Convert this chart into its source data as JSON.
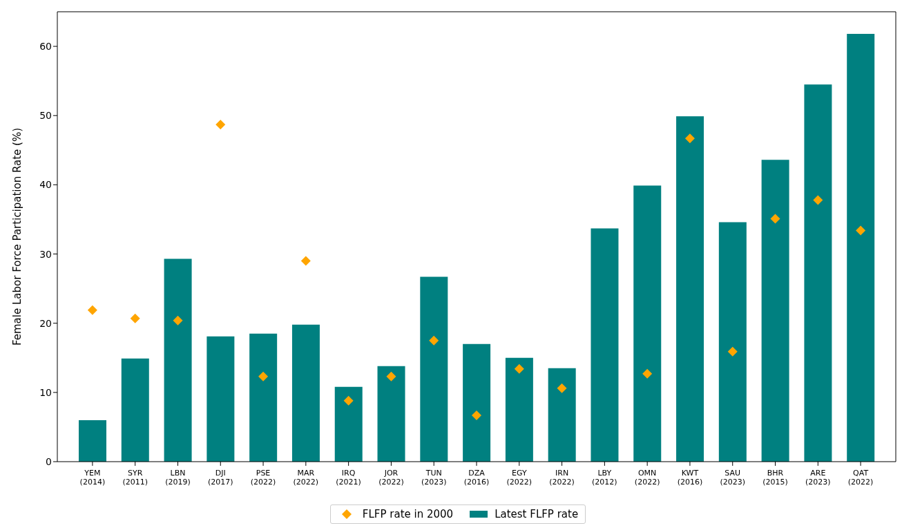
{
  "chart_data": {
    "type": "bar",
    "ylabel": "Female Labor Force Participation Rate (%)",
    "categories": [
      "YEM\n(2014)",
      "SYR\n(2011)",
      "LBN\n(2019)",
      "DJI\n(2017)",
      "PSE\n(2022)",
      "MAR\n(2022)",
      "IRQ\n(2021)",
      "JOR\n(2022)",
      "TUN\n(2023)",
      "DZA\n(2016)",
      "EGY\n(2022)",
      "IRN\n(2022)",
      "LBY\n(2012)",
      "OMN\n(2022)",
      "KWT\n(2016)",
      "SAU\n(2023)",
      "BHR\n(2015)",
      "ARE\n(2023)",
      "QAT\n(2022)"
    ],
    "series": [
      {
        "name": "FLFP rate in 2000",
        "type": "scatter",
        "color": "#ffa500",
        "values": [
          21.9,
          20.7,
          20.4,
          48.7,
          12.3,
          29.0,
          8.8,
          12.3,
          17.5,
          6.7,
          13.4,
          10.6,
          null,
          12.7,
          46.7,
          15.9,
          35.1,
          37.8,
          33.4
        ]
      },
      {
        "name": "Latest FLFP rate",
        "color": "#008080",
        "values": [
          6.0,
          14.9,
          29.3,
          18.1,
          18.5,
          19.8,
          10.8,
          13.8,
          26.7,
          17.0,
          15.0,
          13.5,
          33.7,
          39.9,
          49.9,
          34.6,
          43.6,
          54.5,
          61.8
        ]
      }
    ],
    "marker": "diamond",
    "ylim": [
      0,
      65
    ],
    "yticks": [
      0,
      10,
      20,
      30,
      40,
      50,
      60
    ],
    "grid": false,
    "legend": "bottom"
  }
}
